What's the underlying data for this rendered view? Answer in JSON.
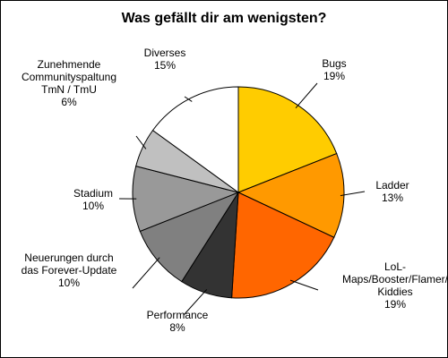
{
  "chart_data": {
    "type": "pie",
    "title": "Was gefällt dir am wenigsten?",
    "slices": [
      {
        "name": "Bugs",
        "label_lines": [
          "Bugs"
        ],
        "percent_label": "19%",
        "value": 19,
        "color": "#FFCC00"
      },
      {
        "name": "Ladder",
        "label_lines": [
          "Ladder"
        ],
        "percent_label": "13%",
        "value": 13,
        "color": "#FF9900"
      },
      {
        "name": "LoL-Maps/Booster/Flamer/Kiddies",
        "label_lines": [
          "LoL-",
          "Maps/Booster/Flamer/",
          "Kiddies"
        ],
        "percent_label": "19%",
        "value": 19,
        "color": "#FF6600"
      },
      {
        "name": "Performance",
        "label_lines": [
          "Performance"
        ],
        "percent_label": "8%",
        "value": 8,
        "color": "#333333"
      },
      {
        "name": "Neuerungen durch das Forever-Update",
        "label_lines": [
          "Neuerungen durch",
          "das Forever-Update"
        ],
        "percent_label": "10%",
        "value": 10,
        "color": "#808080"
      },
      {
        "name": "Stadium",
        "label_lines": [
          "Stadium"
        ],
        "percent_label": "10%",
        "value": 10,
        "color": "#999999"
      },
      {
        "name": "Zunehmende Communityspaltung TmN / TmU",
        "label_lines": [
          "Zunehmende",
          "Communityspaltung",
          "TmN / TmU"
        ],
        "percent_label": "6%",
        "value": 6,
        "color": "#C0C0C0"
      },
      {
        "name": "Diverses",
        "label_lines": [
          "Diverses"
        ],
        "percent_label": "15%",
        "value": 15,
        "color": "#FFFFFF"
      }
    ],
    "start_angle_deg": 0,
    "direction": "clockwise",
    "legend": "none"
  }
}
